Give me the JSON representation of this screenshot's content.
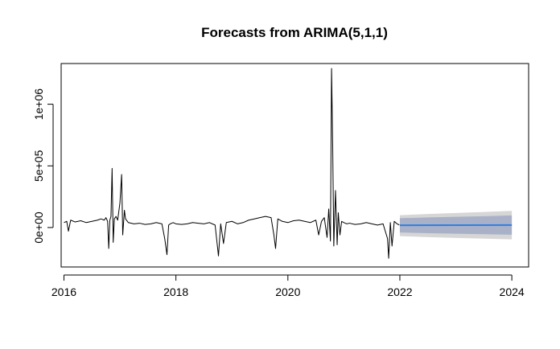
{
  "chart_data": {
    "type": "line",
    "title": "Forecasts from ARIMA(5,1,1)",
    "xlabel": "",
    "ylabel": "",
    "x_range": [
      2015.95,
      2024.3
    ],
    "y_range": [
      -320000,
      1330000
    ],
    "x_ticks": [
      {
        "value": 2016,
        "label": "2016"
      },
      {
        "value": 2018,
        "label": "2018"
      },
      {
        "value": 2020,
        "label": "2020"
      },
      {
        "value": 2022,
        "label": "2022"
      },
      {
        "value": 2024,
        "label": "2024"
      }
    ],
    "y_ticks": [
      {
        "value": 0,
        "label": "0e+00"
      },
      {
        "value": 500000,
        "label": "5e+05"
      },
      {
        "value": 1000000,
        "label": "1e+06"
      }
    ],
    "grid": false,
    "legend": "none",
    "series": [
      {
        "role": "observed",
        "color": "#000000",
        "x": [
          2016.0,
          2016.05,
          2016.08,
          2016.12,
          2016.2,
          2016.3,
          2016.4,
          2016.5,
          2016.6,
          2016.66,
          2016.72,
          2016.75,
          2016.78,
          2016.8,
          2016.82,
          2016.84,
          2016.86,
          2016.88,
          2016.9,
          2016.93,
          2016.96,
          2017.0,
          2017.03,
          2017.05,
          2017.08,
          2017.1,
          2017.15,
          2017.25,
          2017.35,
          2017.45,
          2017.55,
          2017.65,
          2017.75,
          2017.8,
          2017.84,
          2017.87,
          2017.9,
          2017.95,
          2018.0,
          2018.1,
          2018.2,
          2018.3,
          2018.4,
          2018.5,
          2018.6,
          2018.7,
          2018.76,
          2018.8,
          2018.85,
          2018.9,
          2019.0,
          2019.1,
          2019.2,
          2019.3,
          2019.4,
          2019.5,
          2019.6,
          2019.7,
          2019.75,
          2019.78,
          2019.82,
          2019.9,
          2020.0,
          2020.1,
          2020.2,
          2020.3,
          2020.4,
          2020.5,
          2020.55,
          2020.6,
          2020.65,
          2020.7,
          2020.73,
          2020.76,
          2020.78,
          2020.8,
          2020.82,
          2020.85,
          2020.88,
          2020.9,
          2020.93,
          2020.96,
          2021.0,
          2021.05,
          2021.1,
          2021.2,
          2021.3,
          2021.4,
          2021.5,
          2021.6,
          2021.7,
          2021.78,
          2021.8,
          2021.83,
          2021.86,
          2021.9,
          2021.95,
          2021.99
        ],
        "y": [
          40000,
          50000,
          -30000,
          60000,
          45000,
          55000,
          40000,
          50000,
          60000,
          70000,
          60000,
          80000,
          50000,
          -170000,
          60000,
          90000,
          480000,
          -120000,
          70000,
          90000,
          60000,
          200000,
          430000,
          -60000,
          140000,
          70000,
          40000,
          30000,
          35000,
          25000,
          30000,
          40000,
          30000,
          -90000,
          -220000,
          20000,
          30000,
          40000,
          30000,
          25000,
          30000,
          40000,
          35000,
          30000,
          40000,
          20000,
          -230000,
          30000,
          -130000,
          40000,
          50000,
          30000,
          40000,
          60000,
          70000,
          80000,
          90000,
          80000,
          -60000,
          -170000,
          70000,
          50000,
          40000,
          55000,
          60000,
          50000,
          40000,
          60000,
          -60000,
          50000,
          80000,
          -80000,
          150000,
          -110000,
          1290000,
          680000,
          -150000,
          300000,
          -140000,
          120000,
          -60000,
          50000,
          40000,
          30000,
          35000,
          25000,
          30000,
          40000,
          30000,
          20000,
          30000,
          -90000,
          -250000,
          40000,
          -150000,
          50000,
          30000,
          20000
        ]
      },
      {
        "role": "forecast",
        "color": "#2E7FE0",
        "x": [
          2022.0,
          2024.0
        ],
        "y": [
          18000,
          20000
        ]
      }
    ],
    "intervals": [
      {
        "name": "95%",
        "color": "#D6D6D6",
        "x": [
          2022.0,
          2022.5,
          2023.0,
          2023.5,
          2024.0
        ],
        "lower": [
          -70000,
          -78000,
          -84000,
          -90000,
          -96000
        ],
        "upper": [
          100000,
          110000,
          118000,
          126000,
          135000
        ]
      },
      {
        "name": "80%",
        "color": "#A9B1C9",
        "x": [
          2022.0,
          2022.5,
          2023.0,
          2023.5,
          2024.0
        ],
        "lower": [
          -40000,
          -46000,
          -50000,
          -54000,
          -58000
        ],
        "upper": [
          75000,
          82000,
          87000,
          92000,
          98000
        ]
      }
    ]
  }
}
